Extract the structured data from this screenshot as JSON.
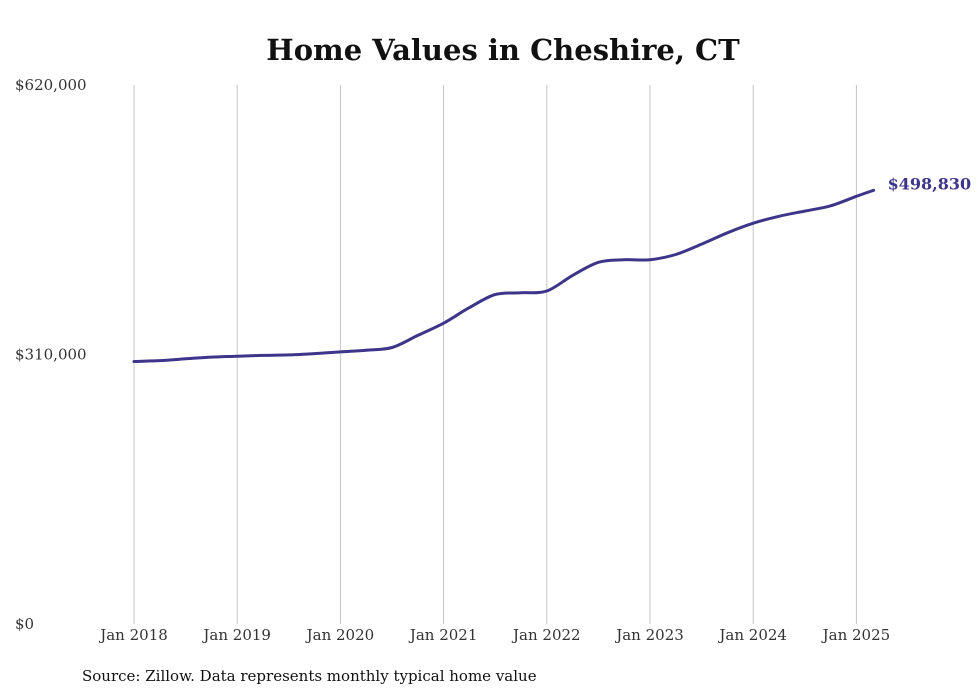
{
  "chart_data": {
    "type": "line",
    "title": "Home Values in Cheshire, CT",
    "xlabel": "",
    "ylabel": "",
    "ylim": [
      0,
      620000
    ],
    "y_ticks": [
      {
        "value": 0,
        "label": "$0"
      },
      {
        "value": 310000,
        "label": "$310,000"
      },
      {
        "value": 620000,
        "label": "$620,000"
      }
    ],
    "x_ticks": [
      {
        "year": 2018,
        "label": "Jan 2018"
      },
      {
        "year": 2019,
        "label": "Jan 2019"
      },
      {
        "year": 2020,
        "label": "Jan 2020"
      },
      {
        "year": 2021,
        "label": "Jan 2021"
      },
      {
        "year": 2022,
        "label": "Jan 2022"
      },
      {
        "year": 2023,
        "label": "Jan 2023"
      },
      {
        "year": 2024,
        "label": "Jan 2024"
      },
      {
        "year": 2025,
        "label": "Jan 2025"
      }
    ],
    "grid": {
      "vertical": true,
      "horizontal": false
    },
    "line_color": "#3d3589",
    "series": [
      {
        "x": [
          "2018-01",
          "2018-04",
          "2018-07",
          "2018-10",
          "2019-01",
          "2019-04",
          "2019-07",
          "2019-10",
          "2020-01",
          "2020-04",
          "2020-07",
          "2020-10",
          "2021-01",
          "2021-04",
          "2021-07",
          "2021-10",
          "2022-01",
          "2022-04",
          "2022-07",
          "2022-10",
          "2023-01",
          "2023-04",
          "2023-07",
          "2023-10",
          "2024-01",
          "2024-04",
          "2024-07",
          "2024-10",
          "2025-01",
          "2025-03"
        ],
        "values": [
          302000,
          303000,
          305000,
          307000,
          308000,
          309000,
          309500,
          311000,
          313000,
          315000,
          318000,
          332000,
          346000,
          364000,
          379000,
          381000,
          383000,
          401000,
          416000,
          419000,
          419000,
          425000,
          437000,
          450000,
          461000,
          469000,
          475000,
          481000,
          492000,
          498830
        ]
      }
    ],
    "end_label": "$498,830"
  },
  "source_note": "Source: Zillow. Data represents monthly typical home value"
}
